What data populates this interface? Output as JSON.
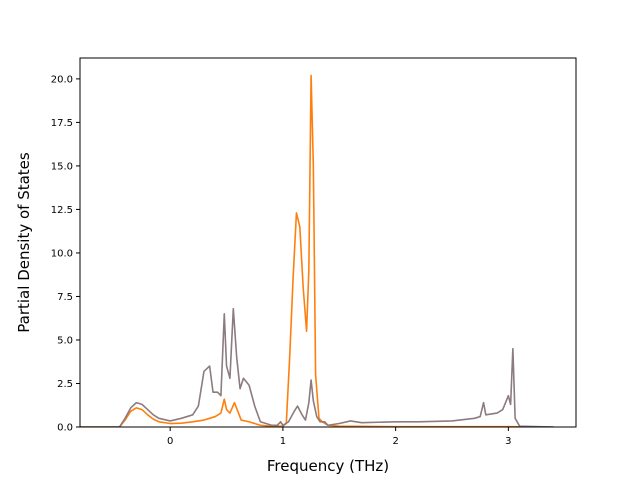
{
  "chart_data": {
    "type": "line",
    "title": "",
    "xlabel": "Frequency (THz)",
    "ylabel": "Partial Density of States",
    "xlim": [
      -0.8,
      3.6
    ],
    "ylim": [
      0,
      21.2
    ],
    "xticks": [
      0,
      1,
      2,
      3
    ],
    "xtick_labels": [
      "0",
      "1",
      "2",
      "3"
    ],
    "yticks": [
      0,
      2.5,
      5,
      7.5,
      10,
      12.5,
      15,
      17.5,
      20
    ],
    "ytick_labels": [
      "0.0",
      "2.5",
      "5.0",
      "7.5",
      "10.0",
      "12.5",
      "15.0",
      "17.5",
      "20.0"
    ],
    "grid": false,
    "legend": false,
    "series": [
      {
        "color": "#ff7f0e",
        "points": [
          [
            -0.8,
            0
          ],
          [
            -0.45,
            0
          ],
          [
            -0.4,
            0.4
          ],
          [
            -0.35,
            0.9
          ],
          [
            -0.3,
            1.1
          ],
          [
            -0.25,
            1.0
          ],
          [
            -0.2,
            0.7
          ],
          [
            -0.15,
            0.45
          ],
          [
            -0.1,
            0.3
          ],
          [
            0.0,
            0.2
          ],
          [
            0.1,
            0.22
          ],
          [
            0.2,
            0.3
          ],
          [
            0.3,
            0.4
          ],
          [
            0.35,
            0.5
          ],
          [
            0.4,
            0.6
          ],
          [
            0.45,
            0.8
          ],
          [
            0.48,
            1.6
          ],
          [
            0.5,
            1.0
          ],
          [
            0.53,
            0.8
          ],
          [
            0.57,
            1.4
          ],
          [
            0.6,
            0.9
          ],
          [
            0.63,
            0.4
          ],
          [
            0.7,
            0.3
          ],
          [
            0.8,
            0.1
          ],
          [
            0.9,
            0.05
          ],
          [
            1.0,
            0.05
          ],
          [
            1.03,
            0.2
          ],
          [
            1.06,
            4.0
          ],
          [
            1.09,
            8.5
          ],
          [
            1.12,
            12.3
          ],
          [
            1.15,
            11.5
          ],
          [
            1.18,
            8.0
          ],
          [
            1.21,
            5.5
          ],
          [
            1.23,
            9.0
          ],
          [
            1.25,
            20.2
          ],
          [
            1.27,
            15.0
          ],
          [
            1.29,
            3.0
          ],
          [
            1.32,
            0.5
          ],
          [
            1.35,
            0.3
          ],
          [
            1.4,
            0.1
          ],
          [
            1.5,
            0.05
          ],
          [
            2.0,
            0.02
          ],
          [
            3.0,
            0.02
          ],
          [
            3.4,
            0
          ]
        ]
      },
      {
        "color": "#8c7b7f",
        "points": [
          [
            -0.8,
            0
          ],
          [
            -0.45,
            0
          ],
          [
            -0.4,
            0.5
          ],
          [
            -0.35,
            1.1
          ],
          [
            -0.3,
            1.4
          ],
          [
            -0.25,
            1.3
          ],
          [
            -0.2,
            1.0
          ],
          [
            -0.15,
            0.7
          ],
          [
            -0.1,
            0.5
          ],
          [
            0.0,
            0.35
          ],
          [
            0.1,
            0.5
          ],
          [
            0.2,
            0.7
          ],
          [
            0.25,
            1.2
          ],
          [
            0.3,
            3.2
          ],
          [
            0.35,
            3.5
          ],
          [
            0.38,
            2.0
          ],
          [
            0.42,
            2.0
          ],
          [
            0.45,
            1.8
          ],
          [
            0.48,
            6.5
          ],
          [
            0.5,
            3.5
          ],
          [
            0.53,
            2.8
          ],
          [
            0.56,
            6.8
          ],
          [
            0.59,
            4.0
          ],
          [
            0.62,
            2.2
          ],
          [
            0.65,
            2.8
          ],
          [
            0.7,
            2.4
          ],
          [
            0.75,
            1.2
          ],
          [
            0.8,
            0.3
          ],
          [
            0.9,
            0.1
          ],
          [
            0.95,
            0.1
          ],
          [
            0.98,
            0.3
          ],
          [
            1.0,
            0.1
          ],
          [
            1.05,
            0.3
          ],
          [
            1.1,
            0.9
          ],
          [
            1.13,
            1.2
          ],
          [
            1.17,
            0.7
          ],
          [
            1.2,
            0.4
          ],
          [
            1.23,
            1.4
          ],
          [
            1.25,
            2.7
          ],
          [
            1.27,
            1.5
          ],
          [
            1.3,
            0.6
          ],
          [
            1.33,
            0.3
          ],
          [
            1.37,
            0.3
          ],
          [
            1.4,
            0.1
          ],
          [
            1.5,
            0.2
          ],
          [
            1.6,
            0.35
          ],
          [
            1.7,
            0.25
          ],
          [
            2.0,
            0.3
          ],
          [
            2.2,
            0.3
          ],
          [
            2.5,
            0.35
          ],
          [
            2.7,
            0.5
          ],
          [
            2.75,
            0.6
          ],
          [
            2.78,
            1.4
          ],
          [
            2.8,
            0.7
          ],
          [
            2.9,
            0.8
          ],
          [
            2.95,
            1.0
          ],
          [
            3.0,
            1.8
          ],
          [
            3.02,
            1.3
          ],
          [
            3.04,
            4.5
          ],
          [
            3.06,
            0.5
          ],
          [
            3.1,
            0.05
          ],
          [
            3.4,
            0
          ]
        ]
      }
    ]
  }
}
